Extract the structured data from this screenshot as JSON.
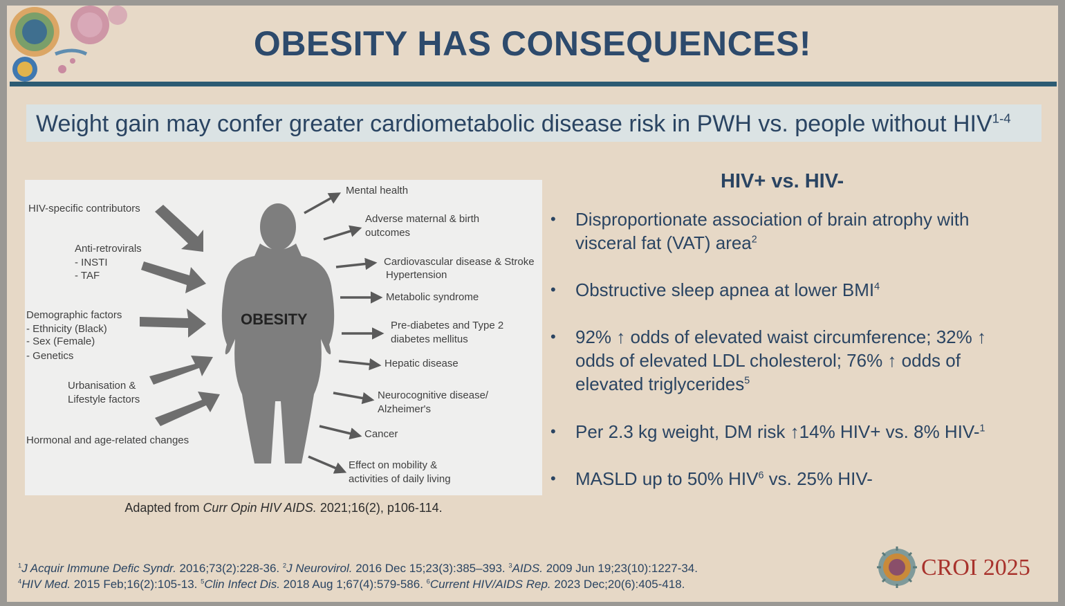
{
  "title": "OBESITY HAS CONSEQUENCES!",
  "subtitle": {
    "text": "Weight gain may confer greater cardiometabolic disease risk in PWH vs. people without HIV",
    "sup": "1-4"
  },
  "figure": {
    "center_label": "OBESITY",
    "contributors": {
      "hiv_specific": "HIV-specific contributors",
      "arv_title": "Anti-retrovirals",
      "arv_items": [
        "-   INSTI",
        "-   TAF"
      ],
      "demo_title": "Demographic factors",
      "demo_items": [
        "-   Ethnicity (Black)",
        "-   Sex (Female)",
        "-   Genetics"
      ],
      "urban_line1": "Urbanisation &",
      "urban_line2": "Lifestyle factors",
      "hormonal": "Hormonal and age-related changes"
    },
    "consequences": {
      "mental": "Mental health",
      "maternal_1": "Adverse maternal & birth",
      "maternal_2": "outcomes",
      "cvd_1": "Cardiovascular disease & Stroke",
      "cvd_2": "Hypertension",
      "metabolic": "Metabolic syndrome",
      "diabetes_1": "Pre-diabetes and Type 2",
      "diabetes_2": "diabetes mellitus",
      "hepatic": "Hepatic disease",
      "neuro_1": "Neurocognitive disease/",
      "neuro_2": "Alzheimer's",
      "cancer": "Cancer",
      "mobility_1": "Effect on mobility &",
      "mobility_2": "activities of daily living"
    }
  },
  "caption": {
    "prefix": "Adapted from ",
    "journal": "Curr Opin HIV AIDS.",
    "suffix": " 2021;16(2), p106-114."
  },
  "panel": {
    "heading": "HIV+ vs. HIV-",
    "bullets": [
      {
        "text": "Disproportionate association of brain atrophy with visceral fat (VAT) area",
        "sup": "2"
      },
      {
        "text": "Obstructive sleep apnea at lower BMI",
        "sup": "4"
      },
      {
        "text": "92% ↑ odds of elevated waist circumference; 32% ↑ odds of elevated LDL cholesterol; 76% ↑ odds of elevated triglycerides",
        "sup": "5"
      },
      {
        "text": "Per 2.3 kg weight, DM risk ↑14% HIV+ vs. 8% HIV-",
        "sup": "1"
      },
      {
        "text_a": "MASLD up to 50% HIV",
        "sup": "6",
        "text_b": " vs. 25% HIV-"
      }
    ]
  },
  "footnotes": {
    "line1": [
      {
        "sup": "1",
        "journal": "J Acquir Immune Defic Syndr.",
        "rest": " 2016;73(2):228-36.  "
      },
      {
        "sup": "2",
        "journal": "J Neurovirol.",
        "rest": " 2016 Dec 15;23(3):385–393. "
      },
      {
        "sup": "3",
        "journal": "AIDS.",
        "rest": " 2009 Jun 19;23(10):1227-34."
      }
    ],
    "line2": [
      {
        "sup": "4",
        "journal": "HIV Med.",
        "rest": " 2015 Feb;16(2):105-13. "
      },
      {
        "sup": "5",
        "journal": "Clin Infect Dis.",
        "rest": " 2018 Aug 1;67(4):579-586. "
      },
      {
        "sup": "6",
        "journal": "Current HIV/AIDS Rep.",
        "rest": " 2023 Dec;20(6):405-418."
      }
    ]
  },
  "logo": {
    "text": "CROI 2025"
  },
  "colors": {
    "title": "#2d4a6c",
    "rule": "#2c5b73",
    "logo_red": "#a8322c",
    "silhouette": "#7e7e7e"
  }
}
